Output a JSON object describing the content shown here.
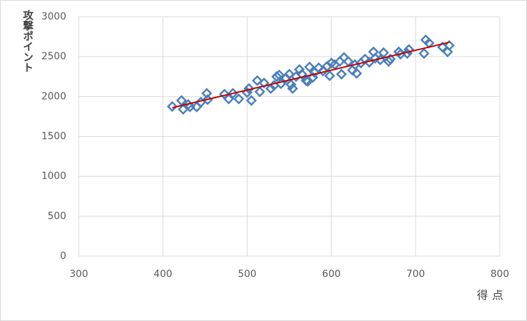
{
  "chart_data": {
    "type": "scatter",
    "x_label": "得点",
    "y_label": "攻撃ポイント",
    "xlim": [
      300,
      800
    ],
    "xticks": [
      300,
      400,
      500,
      600,
      700,
      800
    ],
    "ylim": [
      0,
      3000
    ],
    "yticks": [
      0,
      500,
      1000,
      1500,
      2000,
      2500,
      3000
    ],
    "grid": true,
    "series": [
      {
        "color": "#4a7ebb",
        "x": [
          411,
          422,
          424,
          430,
          432,
          440,
          445,
          452,
          453,
          473,
          478,
          483,
          490,
          500,
          502,
          505,
          512,
          515,
          520,
          528,
          532,
          535,
          538,
          540,
          546,
          550,
          552,
          554,
          558,
          562,
          565,
          570,
          572,
          574,
          578,
          580,
          585,
          590,
          595,
          598,
          600,
          604,
          610,
          612,
          615,
          620,
          625,
          628,
          630,
          635,
          640,
          645,
          650,
          652,
          658,
          662,
          668,
          670,
          680,
          682,
          690,
          692,
          710,
          712,
          716,
          732,
          738,
          740
        ],
        "values": [
          1875,
          1950,
          1840,
          1900,
          1870,
          1870,
          1930,
          2040,
          1960,
          2030,
          1970,
          2040,
          1970,
          2050,
          2100,
          1950,
          2200,
          2060,
          2170,
          2100,
          2140,
          2250,
          2270,
          2160,
          2230,
          2280,
          2150,
          2100,
          2250,
          2340,
          2280,
          2200,
          2190,
          2370,
          2240,
          2300,
          2360,
          2320,
          2380,
          2260,
          2420,
          2400,
          2440,
          2280,
          2490,
          2440,
          2330,
          2400,
          2290,
          2420,
          2470,
          2430,
          2560,
          2480,
          2460,
          2550,
          2440,
          2470,
          2560,
          2530,
          2540,
          2590,
          2540,
          2710,
          2670,
          2620,
          2560,
          2640
        ]
      }
    ],
    "trendline": {
      "color": "#c00000",
      "x": [
        411,
        740
      ],
      "values": [
        1860,
        2680
      ]
    }
  }
}
